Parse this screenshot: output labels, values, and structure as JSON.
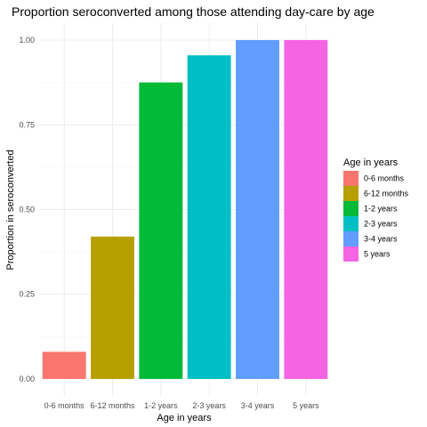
{
  "chart_data": {
    "type": "bar",
    "title": "Proportion seroconverted among those attending day-care by age",
    "xlabel": "Age in years",
    "ylabel": "Proportion in seroconverted",
    "categories": [
      "0-6 months",
      "6-12 months",
      "1-2 years",
      "2-3 years",
      "3-4 years",
      "5 years"
    ],
    "values": [
      0.08,
      0.42,
      0.875,
      0.955,
      1.0,
      1.0
    ],
    "colors": [
      "#F8766D",
      "#B79F00",
      "#00BA38",
      "#00BFC4",
      "#619CFF",
      "#F564E3"
    ],
    "ylim": [
      0,
      1.0
    ],
    "y_ticks": [
      0.0,
      0.25,
      0.5,
      0.75,
      1.0
    ],
    "y_tick_labels": [
      "0.00",
      "0.25",
      "0.50",
      "0.75",
      "1.00"
    ],
    "grid": true,
    "legend": {
      "title": "Age in years",
      "placement": "right",
      "entries": [
        "0-6 months",
        "6-12 months",
        "1-2 years",
        "2-3 years",
        "3-4 years",
        "5 years"
      ]
    }
  }
}
